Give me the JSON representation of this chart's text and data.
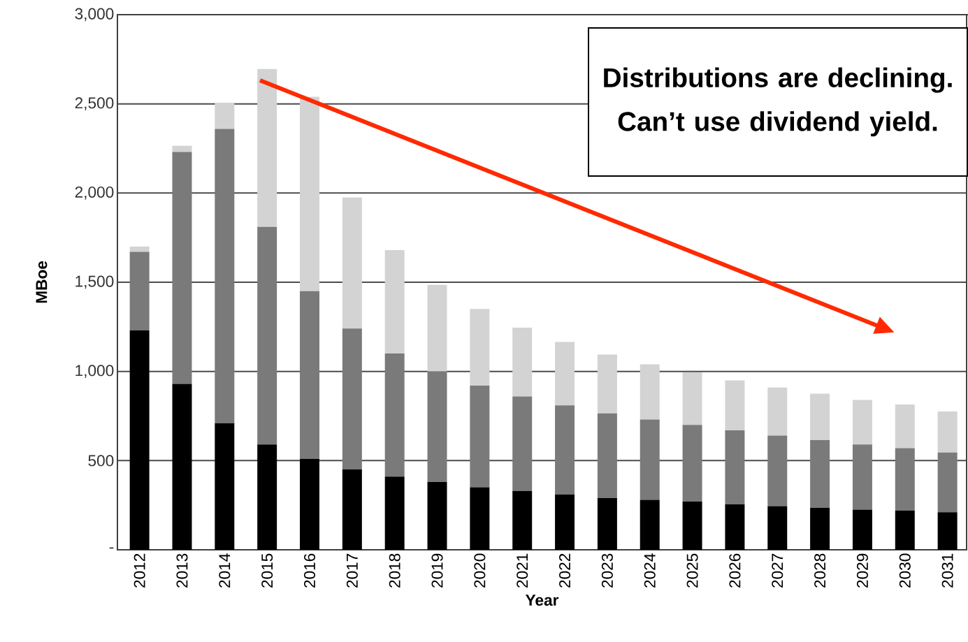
{
  "chart_data": {
    "type": "bar",
    "stacked": true,
    "xlabel": "Year",
    "ylabel": "MBoe",
    "categories": [
      "2012",
      "2013",
      "2014",
      "2015",
      "2016",
      "2017",
      "2018",
      "2019",
      "2020",
      "2021",
      "2022",
      "2023",
      "2024",
      "2025",
      "2026",
      "2027",
      "2028",
      "2029",
      "2030",
      "2031"
    ],
    "series": [
      {
        "color": "#000000",
        "values": [
          1230,
          930,
          710,
          590,
          510,
          450,
          410,
          380,
          350,
          330,
          310,
          290,
          280,
          270,
          255,
          245,
          235,
          225,
          220,
          210
        ]
      },
      {
        "color": "#7a7a7a",
        "values": [
          440,
          1300,
          1650,
          1220,
          940,
          790,
          690,
          620,
          570,
          530,
          500,
          475,
          450,
          430,
          415,
          395,
          380,
          365,
          350,
          335
        ]
      },
      {
        "color": "#d3d3d3",
        "values": [
          30,
          35,
          145,
          885,
          1090,
          735,
          580,
          485,
          430,
          385,
          355,
          330,
          310,
          295,
          280,
          270,
          260,
          250,
          245,
          230
        ]
      }
    ],
    "ylim": [
      0,
      3000
    ],
    "yticks": [
      {
        "value": 0,
        "label": "-"
      },
      {
        "value": 500,
        "label": "500"
      },
      {
        "value": 1000,
        "label": "1,000"
      },
      {
        "value": 1500,
        "label": "1,500"
      },
      {
        "value": 2000,
        "label": "2,000"
      },
      {
        "value": 2500,
        "label": "2,500"
      },
      {
        "value": 3000,
        "label": "3,000"
      }
    ],
    "grid": "y",
    "annotations": [
      "Distributions are declining. Can’t use dividend yield."
    ]
  }
}
